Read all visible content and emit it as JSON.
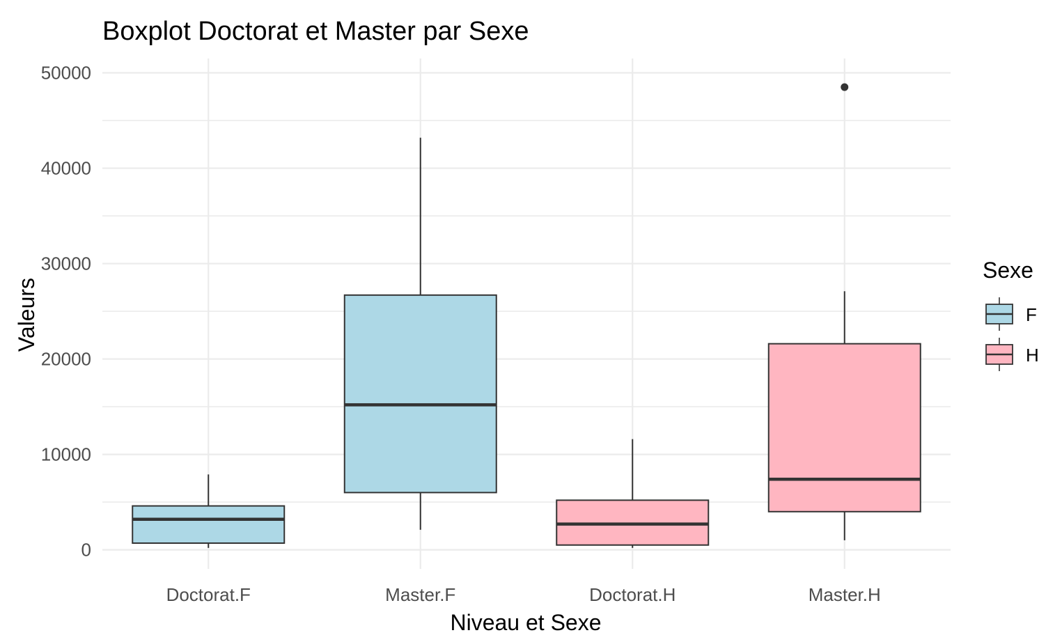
{
  "chart_data": {
    "type": "boxplot",
    "title": "Boxplot Doctorat et Master par Sexe",
    "xlabel": "Niveau et Sexe",
    "ylabel": "Valeurs",
    "ylim": [
      -2000,
      51500
    ],
    "yticks": [
      0,
      10000,
      20000,
      30000,
      40000,
      50000
    ],
    "ytick_labels": [
      "0",
      "10000",
      "20000",
      "30000",
      "40000",
      "50000"
    ],
    "grid": true,
    "legend": {
      "title": "Sexe",
      "position": "right",
      "items": [
        {
          "label": "F",
          "color": "#add8e6"
        },
        {
          "label": "H",
          "color": "#ffb6c1"
        }
      ]
    },
    "categories": [
      "Doctorat.F",
      "Master.F",
      "Doctorat.H",
      "Master.H"
    ],
    "boxes": [
      {
        "category": "Doctorat.F",
        "group": "F",
        "whisker_low": 200,
        "q1": 700,
        "median": 3200,
        "q3": 4600,
        "whisker_high": 7900,
        "outliers": []
      },
      {
        "category": "Master.F",
        "group": "F",
        "whisker_low": 2100,
        "q1": 6000,
        "median": 15200,
        "q3": 26700,
        "whisker_high": 43200,
        "outliers": []
      },
      {
        "category": "Doctorat.H",
        "group": "H",
        "whisker_low": 200,
        "q1": 500,
        "median": 2700,
        "q3": 5200,
        "whisker_high": 11600,
        "outliers": []
      },
      {
        "category": "Master.H",
        "group": "H",
        "whisker_low": 1000,
        "q1": 4000,
        "median": 7400,
        "q3": 21600,
        "whisker_high": 27100,
        "outliers": [
          48500
        ]
      }
    ],
    "colors": {
      "F": "#add8e6",
      "H": "#ffb6c1",
      "outline": "#333333",
      "grid": "#ebebeb"
    }
  }
}
